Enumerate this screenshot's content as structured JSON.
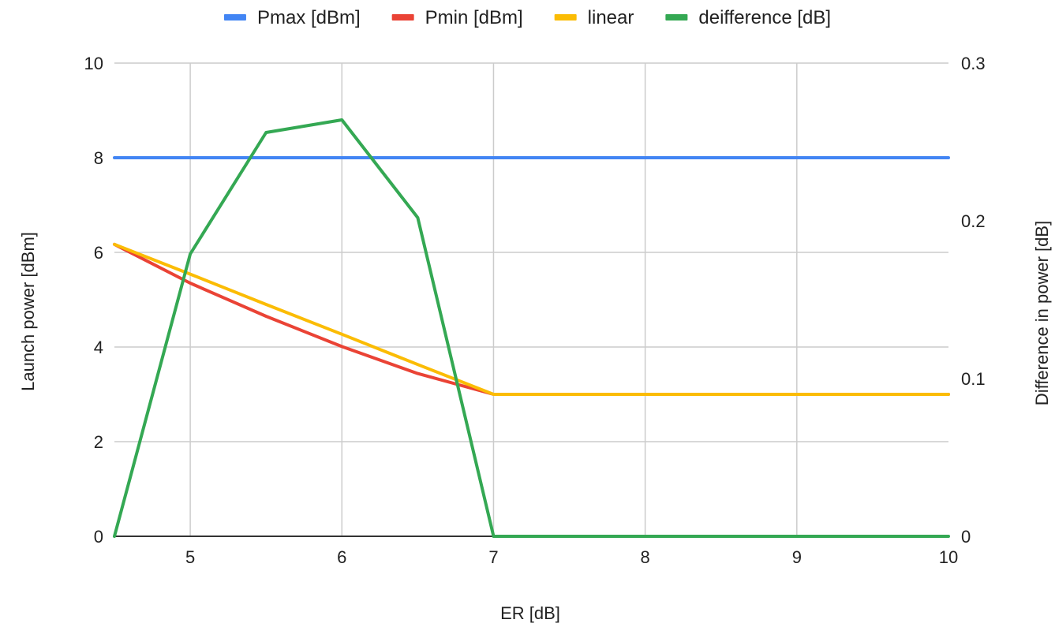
{
  "chart_data": {
    "type": "line",
    "xlabel": "ER [dB]",
    "ylabel_left": "Launch power [dBm]",
    "ylabel_right": "Difference in power [dB]",
    "xlim": [
      4.5,
      10
    ],
    "ylim_left": [
      0,
      10
    ],
    "ylim_right": [
      0,
      0.3
    ],
    "x_ticks": [
      5,
      6,
      7,
      8,
      9,
      10
    ],
    "y_ticks_left": [
      0,
      2,
      4,
      6,
      8,
      10
    ],
    "y_ticks_right": [
      0,
      0.1,
      0.2,
      0.3
    ],
    "x_tick_labels": [
      "5",
      "6",
      "7",
      "8",
      "9",
      "10"
    ],
    "y_tick_labels_left": [
      "0",
      "2",
      "4",
      "6",
      "8",
      "10"
    ],
    "y_tick_labels_right": [
      "0",
      "0.1",
      "0.2",
      "0.3"
    ],
    "grid": true,
    "legend_position": "top",
    "series": [
      {
        "name": "Pmax [dBm]",
        "color": "#4285F4",
        "axis": "left",
        "x": [
          4.5,
          5,
          5.5,
          6,
          6.5,
          7,
          7.5,
          8,
          8.5,
          9,
          9.5,
          10
        ],
        "y": [
          8,
          8,
          8,
          8,
          8,
          8,
          8,
          8,
          8,
          8,
          8,
          8
        ]
      },
      {
        "name": "Pmin [dBm]",
        "color": "#EA4335",
        "axis": "left",
        "x": [
          4.5,
          5,
          5.5,
          6,
          6.5,
          7,
          7.5,
          8,
          8.5,
          9,
          9.5,
          10
        ],
        "y": [
          6.17,
          5.35,
          4.65,
          4.01,
          3.44,
          3.0,
          3.0,
          3.0,
          3.0,
          3.0,
          3.0,
          3.0
        ]
      },
      {
        "name": "linear",
        "color": "#FBBC04",
        "axis": "left",
        "x": [
          4.5,
          5,
          5.5,
          6,
          6.5,
          7,
          7.5,
          8,
          8.5,
          9,
          9.5,
          10
        ],
        "y": [
          6.17,
          5.54,
          4.9,
          4.27,
          3.63,
          3.0,
          3.0,
          3.0,
          3.0,
          3.0,
          3.0,
          3.0
        ]
      },
      {
        "name": "deifference [dB]",
        "color": "#34A853",
        "axis": "right",
        "x": [
          4.5,
          5,
          5.5,
          6,
          6.5,
          7,
          7.5,
          8,
          8.5,
          9,
          9.5,
          10
        ],
        "y": [
          0,
          0.179,
          0.256,
          0.264,
          0.202,
          0,
          0,
          0,
          0,
          0,
          0,
          0
        ]
      }
    ]
  }
}
